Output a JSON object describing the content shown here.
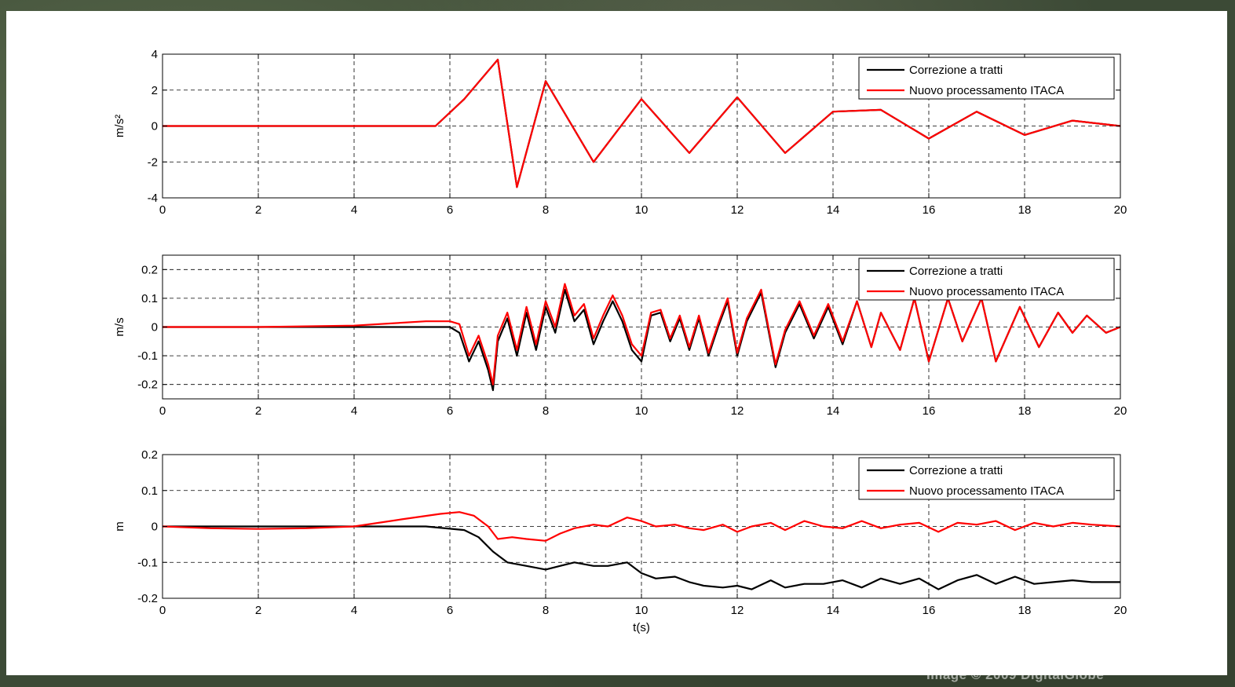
{
  "watermark": "Image © 2009 DigitalGlobe",
  "colors": {
    "black_series": "#000000",
    "red_series": "#ff0000",
    "grid": "#000000"
  },
  "chart_data": [
    {
      "type": "line",
      "ylabel": "m/s²",
      "xlabel": "",
      "xlim": [
        0,
        20
      ],
      "ylim": [
        -4,
        4
      ],
      "xticks": [
        0,
        2,
        4,
        6,
        8,
        10,
        12,
        14,
        16,
        18,
        20
      ],
      "yticks": [
        -4,
        -2,
        0,
        2,
        4
      ],
      "grid": true,
      "legend_position": "top-right",
      "legend": [
        "Correzione a tratti",
        "Nuovo processamento ITACA"
      ],
      "series": [
        {
          "name": "Correzione a tratti",
          "color": "#000000",
          "x": [
            0,
            5.7,
            6.3,
            7.0,
            7.4,
            8.0,
            9.0,
            10.0,
            11.0,
            12.0,
            13.0,
            14.0,
            15.0,
            16.0,
            17.0,
            18.0,
            19.0,
            20.0
          ],
          "y": [
            0,
            0,
            1.5,
            3.7,
            -3.4,
            2.5,
            -2.0,
            1.5,
            -1.5,
            1.6,
            -1.5,
            0.8,
            0.9,
            -0.7,
            0.8,
            -0.5,
            0.3,
            0
          ]
        },
        {
          "name": "Nuovo processamento ITACA",
          "color": "#ff0000",
          "x": [
            0,
            5.7,
            6.3,
            7.0,
            7.4,
            8.0,
            9.0,
            10.0,
            11.0,
            12.0,
            13.0,
            14.0,
            15.0,
            16.0,
            17.0,
            18.0,
            19.0,
            20.0
          ],
          "y": [
            0,
            0,
            1.5,
            3.7,
            -3.4,
            2.5,
            -2.0,
            1.5,
            -1.5,
            1.6,
            -1.5,
            0.8,
            0.9,
            -0.7,
            0.8,
            -0.5,
            0.3,
            0
          ]
        }
      ]
    },
    {
      "type": "line",
      "ylabel": "m/s",
      "xlabel": "",
      "xlim": [
        0,
        20
      ],
      "ylim": [
        -0.25,
        0.25
      ],
      "xticks": [
        0,
        2,
        4,
        6,
        8,
        10,
        12,
        14,
        16,
        18,
        20
      ],
      "yticks": [
        -0.2,
        -0.1,
        0,
        0.1,
        0.2
      ],
      "grid": true,
      "legend_position": "top-right",
      "legend": [
        "Correzione a tratti",
        "Nuovo processamento ITACA"
      ],
      "series": [
        {
          "name": "Correzione a tratti",
          "color": "#000000",
          "x": [
            0,
            2,
            4,
            5.5,
            6.0,
            6.2,
            6.4,
            6.6,
            6.8,
            6.9,
            7.0,
            7.2,
            7.4,
            7.6,
            7.8,
            8.0,
            8.2,
            8.4,
            8.6,
            8.8,
            9.0,
            9.2,
            9.4,
            9.6,
            9.8,
            10.0,
            10.2,
            10.4,
            10.6,
            10.8,
            11.0,
            11.2,
            11.4,
            11.6,
            11.8,
            12.0,
            12.2,
            12.5,
            12.8,
            13.0,
            13.3,
            13.6,
            13.9,
            14.2,
            14.5,
            14.8,
            15.0,
            15.4,
            15.7,
            16.0,
            16.4,
            16.7,
            17.1,
            17.4,
            17.9,
            18.3,
            18.7,
            19.0,
            19.3,
            19.7,
            20.0
          ],
          "y": [
            0,
            0,
            0,
            0,
            0,
            -0.02,
            -0.12,
            -0.05,
            -0.15,
            -0.22,
            -0.05,
            0.03,
            -0.1,
            0.05,
            -0.08,
            0.07,
            -0.02,
            0.13,
            0.02,
            0.06,
            -0.06,
            0.02,
            0.09,
            0.02,
            -0.08,
            -0.12,
            0.04,
            0.05,
            -0.05,
            0.03,
            -0.08,
            0.03,
            -0.1,
            0.0,
            0.09,
            -0.1,
            0.02,
            0.12,
            -0.14,
            -0.02,
            0.08,
            -0.04,
            0.07,
            -0.06,
            0.09,
            -0.07,
            0.05,
            -0.08,
            0.1,
            -0.12,
            0.1,
            -0.05,
            0.1,
            -0.12,
            0.07,
            -0.07,
            0.05,
            -0.02,
            0.04,
            -0.02,
            0
          ]
        },
        {
          "name": "Nuovo processamento ITACA",
          "color": "#ff0000",
          "x": [
            0,
            2,
            4,
            5.5,
            6.0,
            6.2,
            6.4,
            6.6,
            6.8,
            6.9,
            7.0,
            7.2,
            7.4,
            7.6,
            7.8,
            8.0,
            8.2,
            8.4,
            8.6,
            8.8,
            9.0,
            9.2,
            9.4,
            9.6,
            9.8,
            10.0,
            10.2,
            10.4,
            10.6,
            10.8,
            11.0,
            11.2,
            11.4,
            11.6,
            11.8,
            12.0,
            12.2,
            12.5,
            12.8,
            13.0,
            13.3,
            13.6,
            13.9,
            14.2,
            14.5,
            14.8,
            15.0,
            15.4,
            15.7,
            16.0,
            16.4,
            16.7,
            17.1,
            17.4,
            17.9,
            18.3,
            18.7,
            19.0,
            19.3,
            19.7,
            20.0
          ],
          "y": [
            0,
            0,
            0.005,
            0.02,
            0.02,
            0.01,
            -0.1,
            -0.03,
            -0.13,
            -0.2,
            -0.03,
            0.05,
            -0.08,
            0.07,
            -0.06,
            0.09,
            0.0,
            0.15,
            0.04,
            0.08,
            -0.04,
            0.04,
            0.11,
            0.04,
            -0.06,
            -0.1,
            0.05,
            0.06,
            -0.04,
            0.04,
            -0.07,
            0.04,
            -0.09,
            0.01,
            0.1,
            -0.09,
            0.03,
            0.13,
            -0.13,
            -0.01,
            0.09,
            -0.03,
            0.08,
            -0.05,
            0.09,
            -0.07,
            0.05,
            -0.08,
            0.1,
            -0.12,
            0.1,
            -0.05,
            0.1,
            -0.12,
            0.07,
            -0.07,
            0.05,
            -0.02,
            0.04,
            -0.02,
            0
          ]
        }
      ]
    },
    {
      "type": "line",
      "ylabel": "m",
      "xlabel": "t(s)",
      "xlim": [
        0,
        20
      ],
      "ylim": [
        -0.2,
        0.2
      ],
      "xticks": [
        0,
        2,
        4,
        6,
        8,
        10,
        12,
        14,
        16,
        18,
        20
      ],
      "yticks": [
        -0.2,
        -0.1,
        0,
        0.1,
        0.2
      ],
      "grid": true,
      "legend_position": "top-right",
      "legend": [
        "Correzione a tratti",
        "Nuovo processamento ITACA"
      ],
      "series": [
        {
          "name": "Correzione a tratti",
          "color": "#000000",
          "x": [
            0,
            2,
            4,
            5.5,
            6.3,
            6.6,
            6.9,
            7.2,
            7.6,
            8.0,
            8.3,
            8.6,
            9.0,
            9.3,
            9.7,
            10.0,
            10.3,
            10.7,
            11.0,
            11.3,
            11.7,
            12.0,
            12.3,
            12.7,
            13.0,
            13.4,
            13.8,
            14.2,
            14.6,
            15.0,
            15.4,
            15.8,
            16.2,
            16.6,
            17.0,
            17.4,
            17.8,
            18.2,
            18.6,
            19.0,
            19.4,
            20.0
          ],
          "y": [
            0,
            0,
            0,
            0,
            -0.01,
            -0.03,
            -0.07,
            -0.1,
            -0.11,
            -0.12,
            -0.11,
            -0.1,
            -0.11,
            -0.11,
            -0.1,
            -0.13,
            -0.145,
            -0.14,
            -0.155,
            -0.165,
            -0.17,
            -0.165,
            -0.175,
            -0.15,
            -0.17,
            -0.16,
            -0.16,
            -0.15,
            -0.17,
            -0.145,
            -0.16,
            -0.145,
            -0.175,
            -0.15,
            -0.135,
            -0.16,
            -0.14,
            -0.16,
            -0.155,
            -0.15,
            -0.155,
            -0.155
          ]
        },
        {
          "name": "Nuovo processamento ITACA",
          "color": "#ff0000",
          "x": [
            0,
            1,
            2,
            3,
            4,
            5,
            5.8,
            6.2,
            6.5,
            6.8,
            7.0,
            7.3,
            7.6,
            8.0,
            8.3,
            8.6,
            9.0,
            9.3,
            9.7,
            10.0,
            10.3,
            10.7,
            11.0,
            11.3,
            11.7,
            12.0,
            12.3,
            12.7,
            13.0,
            13.4,
            13.8,
            14.2,
            14.6,
            15.0,
            15.4,
            15.8,
            16.2,
            16.6,
            17.0,
            17.4,
            17.8,
            18.2,
            18.6,
            19.0,
            19.4,
            20.0
          ],
          "y": [
            0,
            -0.005,
            -0.007,
            -0.005,
            0,
            0.02,
            0.035,
            0.04,
            0.03,
            0.0,
            -0.035,
            -0.03,
            -0.035,
            -0.04,
            -0.02,
            -0.005,
            0.005,
            0.0,
            0.025,
            0.015,
            0.0,
            0.005,
            -0.005,
            -0.01,
            0.005,
            -0.015,
            0.0,
            0.01,
            -0.01,
            0.015,
            0.0,
            -0.005,
            0.015,
            -0.005,
            0.005,
            0.01,
            -0.015,
            0.01,
            0.005,
            0.015,
            -0.01,
            0.01,
            0.0,
            0.01,
            0.005,
            0.0
          ]
        }
      ]
    }
  ]
}
